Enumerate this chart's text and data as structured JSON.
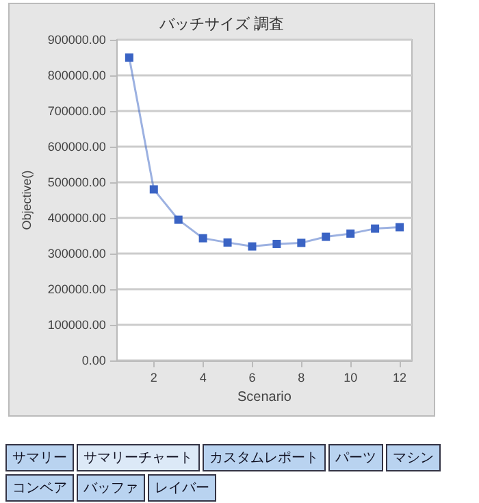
{
  "chart_data": {
    "type": "line",
    "title": "バッチサイズ 調査",
    "xlabel": "Scenario",
    "ylabel": "Objective()",
    "x": [
      1,
      2,
      3,
      4,
      5,
      6,
      7,
      8,
      9,
      10,
      11,
      12
    ],
    "series": [
      {
        "color": "#3a63c4",
        "values": [
          850000,
          480000,
          395000,
          343000,
          331000,
          320000,
          327000,
          330000,
          347000,
          356000,
          370000,
          374000
        ]
      }
    ],
    "xlim": [
      0.5,
      12.5
    ],
    "xticks": [
      2,
      4,
      6,
      8,
      10,
      12
    ],
    "ylim": [
      0,
      900000
    ],
    "yticks": [
      {
        "value": 0,
        "label": "0.00"
      },
      {
        "value": 100000,
        "label": "100000.00"
      },
      {
        "value": 200000,
        "label": "200000.00"
      },
      {
        "value": 300000,
        "label": "300000.00"
      },
      {
        "value": 400000,
        "label": "400000.00"
      },
      {
        "value": 500000,
        "label": "500000.00"
      },
      {
        "value": 600000,
        "label": "600000.00"
      },
      {
        "value": 700000,
        "label": "700000.00"
      },
      {
        "value": 800000,
        "label": "800000.00"
      },
      {
        "value": 900000,
        "label": "900000.00"
      }
    ],
    "grid": "y",
    "marker": "square",
    "line_style": "solid",
    "annotations": [
      "サマリー",
      "サマリーチャート",
      "カスタムレポート",
      "パーツ",
      "マシン",
      "コンベア",
      "バッファ",
      "レイバー"
    ]
  }
}
